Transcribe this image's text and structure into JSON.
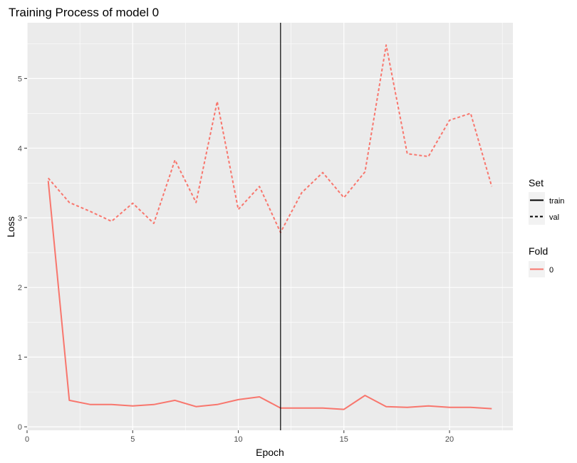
{
  "chart_data": {
    "type": "line",
    "title": "Training Process of model 0",
    "xlabel": "Epoch",
    "ylabel": "Loss",
    "xlim": [
      0,
      23
    ],
    "ylim": [
      -0.05,
      5.8
    ],
    "x_ticks": [
      0,
      5,
      10,
      15,
      20
    ],
    "y_ticks": [
      0,
      1,
      2,
      3,
      4,
      5
    ],
    "grid": true,
    "x": [
      1,
      2,
      3,
      4,
      5,
      6,
      7,
      8,
      9,
      10,
      11,
      12,
      13,
      14,
      15,
      16,
      17,
      18,
      19,
      20,
      21,
      22
    ],
    "series": [
      {
        "set": "train",
        "fold": "0",
        "linetype": "solid",
        "values": [
          3.53,
          0.38,
          0.32,
          0.32,
          0.3,
          0.32,
          0.38,
          0.29,
          0.32,
          0.39,
          0.43,
          0.27,
          0.27,
          0.27,
          0.25,
          0.45,
          0.29,
          0.28,
          0.3,
          0.28,
          0.28,
          0.26
        ]
      },
      {
        "set": "val",
        "fold": "0",
        "linetype": "dashed",
        "values": [
          3.57,
          3.22,
          3.09,
          2.95,
          3.21,
          2.92,
          3.83,
          3.22,
          4.67,
          3.12,
          3.45,
          2.79,
          3.36,
          3.65,
          3.29,
          3.66,
          5.48,
          3.92,
          3.88,
          4.4,
          4.5,
          3.45
        ]
      }
    ],
    "vline_x": 12,
    "legend": {
      "placement": "right",
      "set_title": "Set",
      "set_items": [
        "train",
        "val"
      ],
      "fold_title": "Fold",
      "fold_items": [
        "0"
      ]
    },
    "colors": {
      "series": "#f8766d",
      "panel": "#ebebeb",
      "grid": "#ffffff",
      "vline": "#000000"
    }
  }
}
